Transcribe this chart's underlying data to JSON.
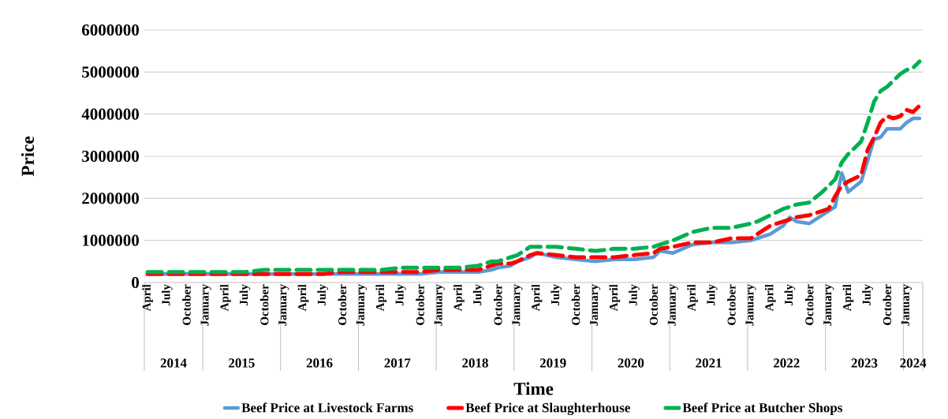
{
  "chart_data": {
    "type": "line",
    "xlabel": "Time",
    "ylabel": "Price",
    "x": [
      "2014-04",
      "2014-07",
      "2014-10",
      "2015-01",
      "2015-04",
      "2015-07",
      "2015-10",
      "2016-01",
      "2016-04",
      "2016-07",
      "2016-10",
      "2017-01",
      "2017-04",
      "2017-07",
      "2017-10",
      "2018-01",
      "2018-04",
      "2018-07",
      "2018-09",
      "2018-10",
      "2018-12",
      "2019-01",
      "2019-03",
      "2019-04",
      "2019-07",
      "2019-10",
      "2020-01",
      "2020-04",
      "2020-07",
      "2020-10",
      "2020-11",
      "2021-01",
      "2021-04",
      "2021-07",
      "2021-10",
      "2022-01",
      "2022-02",
      "2022-04",
      "2022-06",
      "2022-07",
      "2022-08",
      "2022-10",
      "2022-12",
      "2023-01",
      "2023-02",
      "2023-03",
      "2023-04",
      "2023-06",
      "2023-07",
      "2023-08",
      "2023-09",
      "2023-10",
      "2023-11",
      "2023-12",
      "2024-01",
      "2024-02",
      "2024-03"
    ],
    "series": [
      {
        "name": "Beef Price at Livestock Farms",
        "color": "#5b9bd5",
        "line_style": "solid",
        "values": [
          200000,
          200000,
          200000,
          200000,
          200000,
          200000,
          200000,
          200000,
          200000,
          200000,
          200000,
          200000,
          200000,
          200000,
          200000,
          250000,
          250000,
          250000,
          300000,
          350000,
          400000,
          500000,
          600000,
          700000,
          600000,
          550000,
          500000,
          550000,
          550000,
          600000,
          750000,
          700000,
          900000,
          950000,
          950000,
          1000000,
          1050000,
          1150000,
          1350000,
          1550000,
          1450000,
          1400000,
          1600000,
          1700000,
          1800000,
          2600000,
          2150000,
          2400000,
          2900000,
          3400000,
          3450000,
          3650000,
          3650000,
          3650000,
          3800000,
          3900000,
          3900000
        ]
      },
      {
        "name": "Beef Price at Slaughterhouse",
        "color": "#ff0000",
        "line_style": "dashed",
        "values": [
          200000,
          200000,
          200000,
          200000,
          200000,
          200000,
          200000,
          200000,
          200000,
          200000,
          250000,
          250000,
          250000,
          250000,
          250000,
          300000,
          300000,
          300000,
          400000,
          450000,
          450000,
          500000,
          650000,
          700000,
          650000,
          600000,
          600000,
          600000,
          650000,
          700000,
          800000,
          850000,
          950000,
          950000,
          1050000,
          1050000,
          1150000,
          1350000,
          1450000,
          1500000,
          1550000,
          1600000,
          1700000,
          1750000,
          2050000,
          2300000,
          2400000,
          2550000,
          3150000,
          3450000,
          3800000,
          3950000,
          3900000,
          3950000,
          4100000,
          4050000,
          4200000
        ]
      },
      {
        "name": "Beef Price at Butcher Shops",
        "color": "#00b050",
        "line_style": "dashed",
        "values": [
          250000,
          250000,
          250000,
          250000,
          250000,
          250000,
          300000,
          300000,
          300000,
          300000,
          300000,
          300000,
          300000,
          350000,
          350000,
          350000,
          350000,
          400000,
          500000,
          500000,
          600000,
          650000,
          850000,
          850000,
          850000,
          800000,
          750000,
          800000,
          800000,
          850000,
          900000,
          1000000,
          1200000,
          1300000,
          1300000,
          1400000,
          1450000,
          1600000,
          1750000,
          1800000,
          1850000,
          1900000,
          2150000,
          2300000,
          2450000,
          2850000,
          3050000,
          3350000,
          3800000,
          4300000,
          4550000,
          4650000,
          4800000,
          4950000,
          5050000,
          5100000,
          5250000
        ]
      }
    ],
    "xlim": [
      "2014-03-16",
      "2024-03-16"
    ],
    "xticks": [
      {
        "value": "2014-04",
        "label": "April"
      },
      {
        "value": "2014-07",
        "label": "July"
      },
      {
        "value": "2014-10",
        "label": "October"
      },
      {
        "value": "2015-01",
        "label": "January"
      },
      {
        "value": "2015-04",
        "label": "April"
      },
      {
        "value": "2015-07",
        "label": "July"
      },
      {
        "value": "2015-10",
        "label": "October"
      },
      {
        "value": "2016-01",
        "label": "January"
      },
      {
        "value": "2016-04",
        "label": "April"
      },
      {
        "value": "2016-07",
        "label": "July"
      },
      {
        "value": "2016-10",
        "label": "October"
      },
      {
        "value": "2017-01",
        "label": "January"
      },
      {
        "value": "2017-04",
        "label": "April"
      },
      {
        "value": "2017-07",
        "label": "July"
      },
      {
        "value": "2017-10",
        "label": "October"
      },
      {
        "value": "2018-01",
        "label": "January"
      },
      {
        "value": "2018-04",
        "label": "April"
      },
      {
        "value": "2018-07",
        "label": "July"
      },
      {
        "value": "2018-10",
        "label": "October"
      },
      {
        "value": "2019-01",
        "label": "January"
      },
      {
        "value": "2019-04",
        "label": "April"
      },
      {
        "value": "2019-07",
        "label": "July"
      },
      {
        "value": "2019-10",
        "label": "October"
      },
      {
        "value": "2020-01",
        "label": "January"
      },
      {
        "value": "2020-04",
        "label": "April"
      },
      {
        "value": "2020-07",
        "label": "July"
      },
      {
        "value": "2020-10",
        "label": "October"
      },
      {
        "value": "2021-01",
        "label": "January"
      },
      {
        "value": "2021-04",
        "label": "April"
      },
      {
        "value": "2021-07",
        "label": "July"
      },
      {
        "value": "2021-10",
        "label": "October"
      },
      {
        "value": "2022-01",
        "label": "January"
      },
      {
        "value": "2022-04",
        "label": "April"
      },
      {
        "value": "2022-07",
        "label": "July"
      },
      {
        "value": "2022-10",
        "label": "October"
      },
      {
        "value": "2023-01",
        "label": "January"
      },
      {
        "value": "2023-04",
        "label": "April"
      },
      {
        "value": "2023-07",
        "label": "July"
      },
      {
        "value": "2023-10",
        "label": "October"
      },
      {
        "value": "2024-01",
        "label": "January"
      }
    ],
    "ylim": [
      0,
      6000000
    ],
    "yticks": [
      0,
      1000000,
      2000000,
      3000000,
      4000000,
      5000000,
      6000000
    ],
    "annotations": [
      "2014",
      "2015",
      "2016",
      "2017",
      "2018",
      "2019",
      "2020",
      "2021",
      "2022",
      "2023",
      "2024"
    ],
    "grid": "y",
    "legend": "bottom",
    "marker": "none"
  }
}
